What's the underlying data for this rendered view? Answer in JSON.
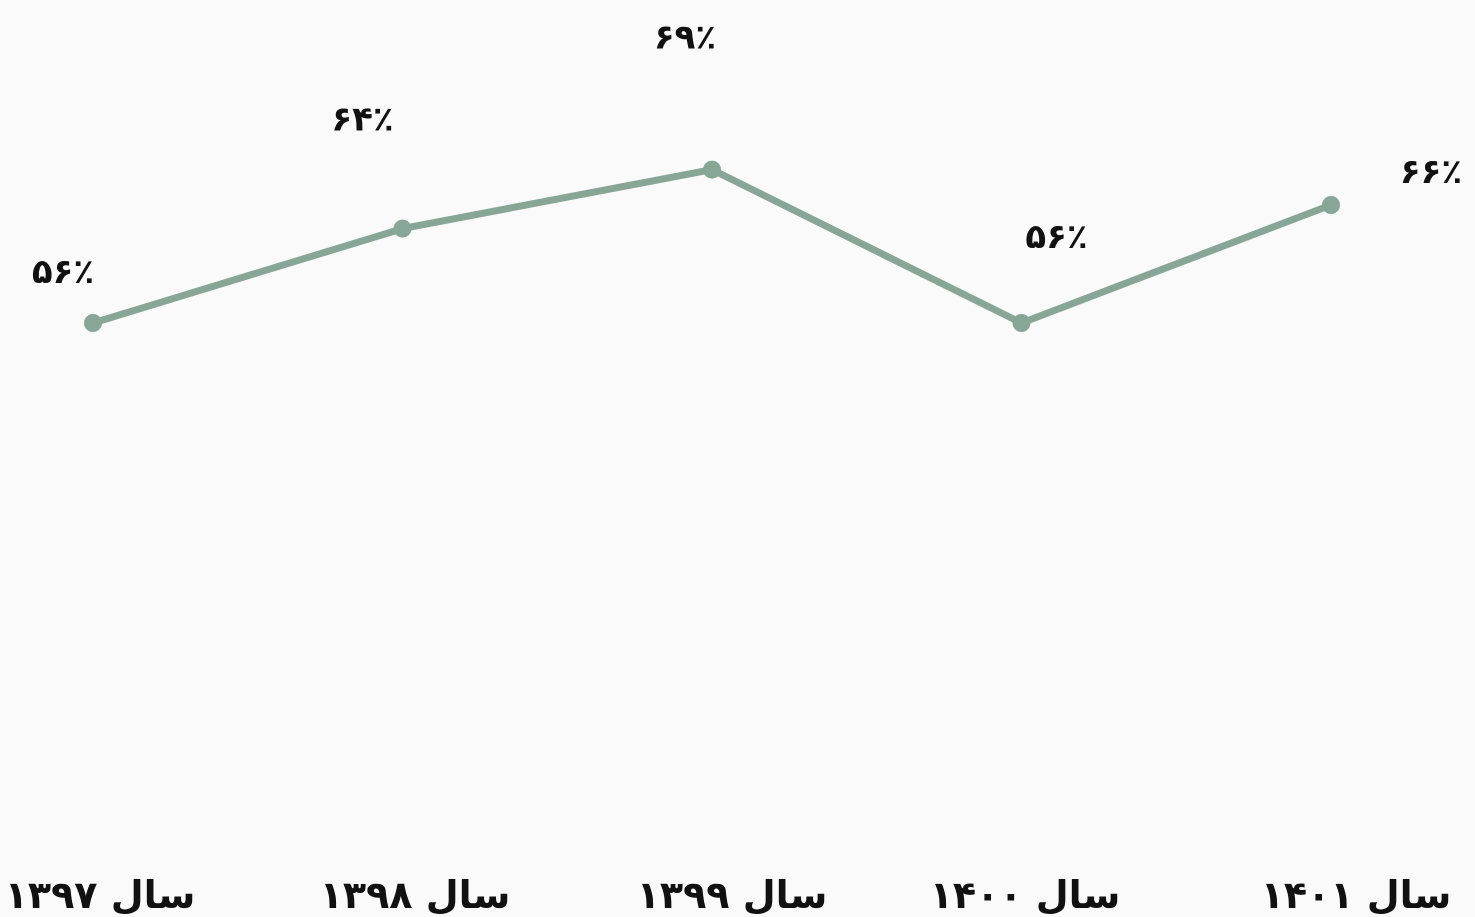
{
  "chart_data": {
    "type": "line",
    "categories": [
      "سال ۱۳۹۷",
      "سال ۱۳۹۸",
      "سال ۱۳۹۹",
      "سال ۱۴۰۰",
      "سال ۱۴۰۱"
    ],
    "series": [
      {
        "values": [
          56,
          64,
          69,
          56,
          66
        ],
        "data_labels": [
          "۵۶٪",
          "۶۴٪",
          "۶۹٪",
          "۵۶٪",
          "۶۶٪"
        ]
      }
    ],
    "line_color": "#87a696",
    "marker_color": "#87a696",
    "background_color": "#fafafa",
    "grid": false,
    "legend": "none",
    "title": "",
    "xlabel": "",
    "ylabel": ""
  }
}
